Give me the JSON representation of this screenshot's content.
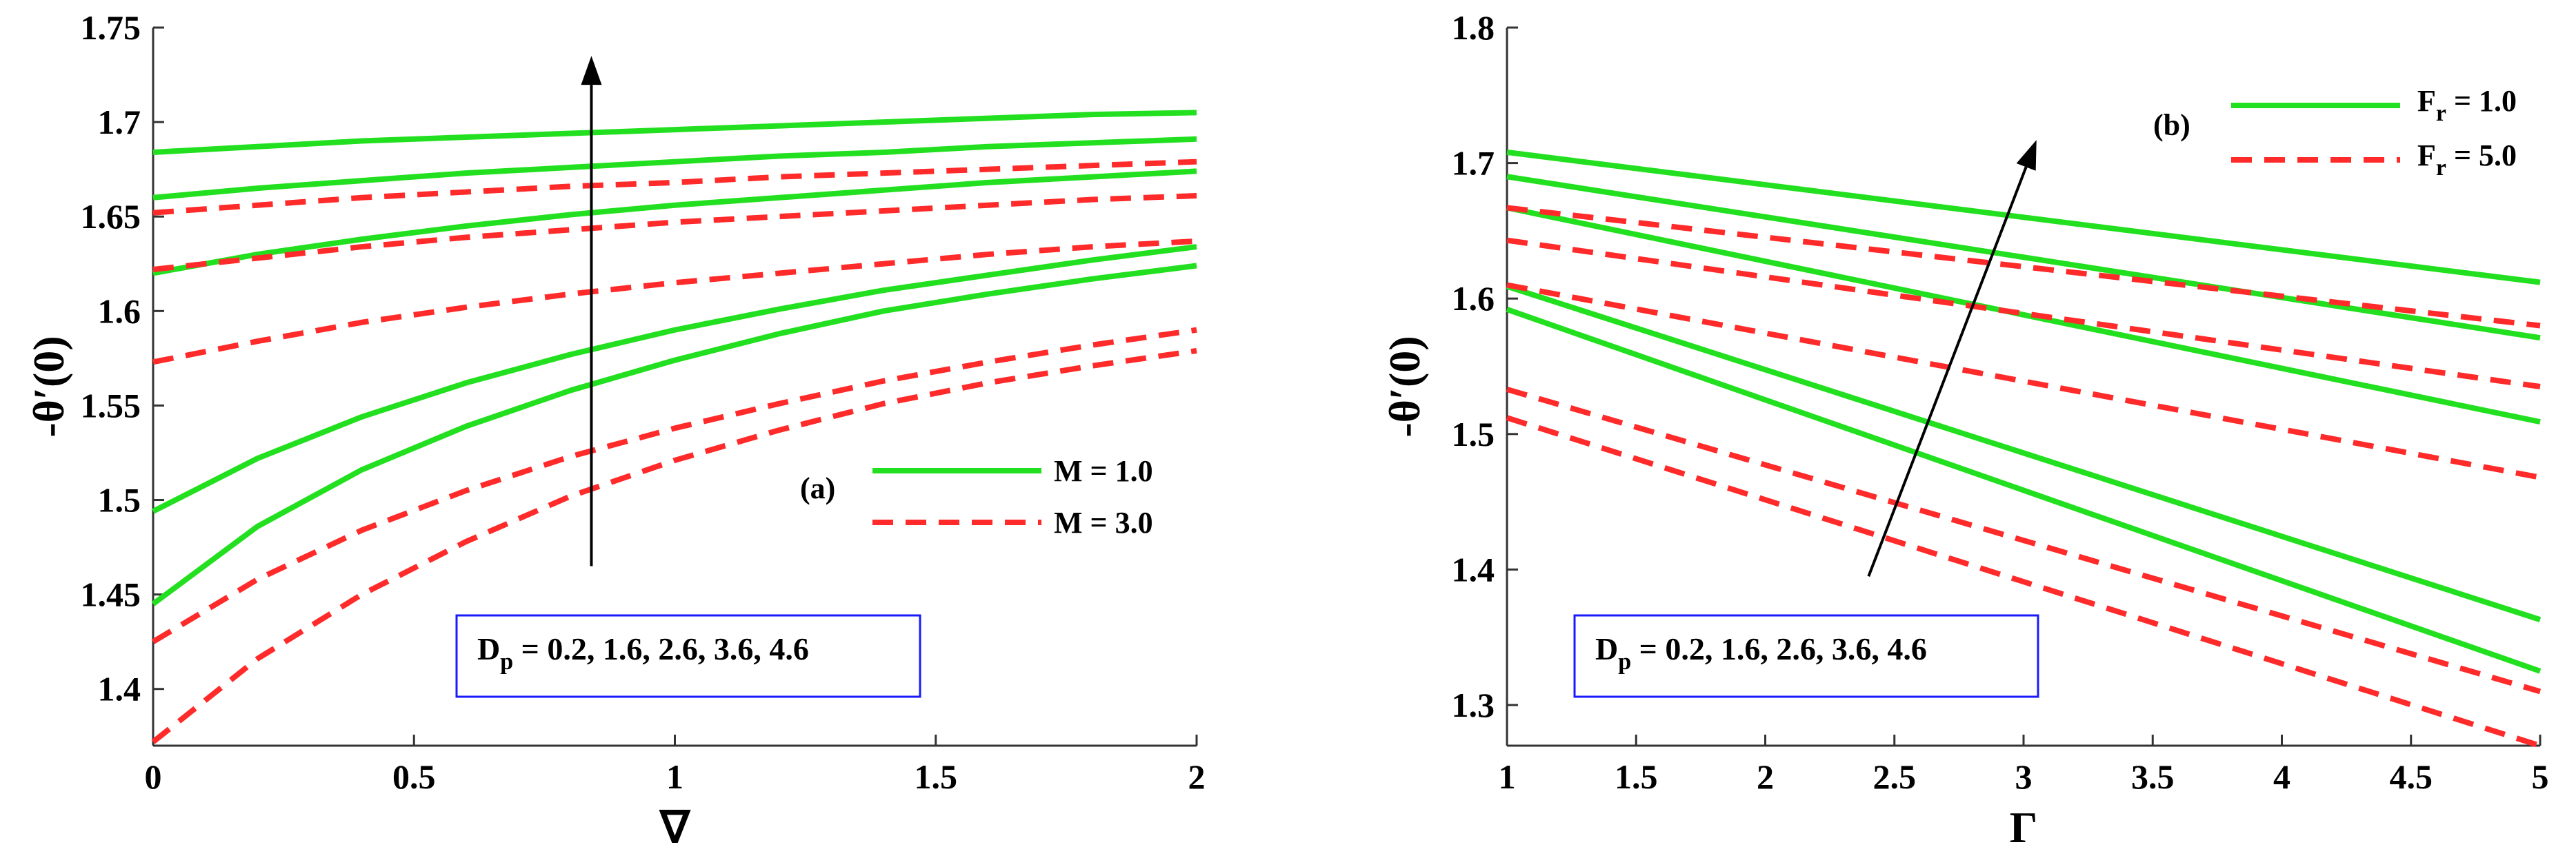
{
  "chart_data": [
    {
      "type": "line",
      "panel_label": "(a)",
      "xlabel": "∇",
      "ylabel": "-θ′(0)",
      "xlim": [
        0,
        2
      ],
      "ylim": [
        1.37,
        1.75
      ],
      "xticks": [
        0,
        0.5,
        1,
        1.5,
        2
      ],
      "xtick_labels": [
        "0",
        "0.5",
        "1",
        "1.5",
        "2"
      ],
      "yticks": [
        1.4,
        1.45,
        1.5,
        1.55,
        1.6,
        1.65,
        1.7,
        1.75
      ],
      "ytick_labels": [
        "1.4",
        "1.45",
        "1.5",
        "1.55",
        "1.6",
        "1.65",
        "1.7",
        "1.75"
      ],
      "legend": [
        {
          "label": "M = 1.0",
          "color": "#22e01f",
          "dash": "solid"
        },
        {
          "label": "M = 3.0",
          "color": "#ff2a2a",
          "dash": "dashed"
        }
      ],
      "annotation": {
        "base": "D",
        "sub": "p",
        "text": " = 0.2, 1.6, 2.6, 3.6, 4.6"
      },
      "arrow": {
        "from": [
          0.84,
          1.465
        ],
        "to": [
          0.84,
          1.735
        ]
      },
      "x": [
        0,
        0.2,
        0.4,
        0.6,
        0.8,
        1.0,
        1.2,
        1.4,
        1.6,
        1.8,
        2.0
      ],
      "series": [
        {
          "name": "M = 1.0, Dp = 0.2",
          "group": 0,
          "values": [
            1.445,
            1.486,
            1.516,
            1.539,
            1.558,
            1.574,
            1.588,
            1.6,
            1.609,
            1.617,
            1.624
          ]
        },
        {
          "name": "M = 1.0, Dp = 1.6",
          "group": 0,
          "values": [
            1.494,
            1.522,
            1.544,
            1.562,
            1.577,
            1.59,
            1.601,
            1.611,
            1.619,
            1.627,
            1.634
          ]
        },
        {
          "name": "M = 1.0, Dp = 2.6",
          "group": 0,
          "values": [
            1.62,
            1.63,
            1.638,
            1.645,
            1.651,
            1.656,
            1.66,
            1.664,
            1.668,
            1.671,
            1.674
          ]
        },
        {
          "name": "M = 1.0, Dp = 3.6",
          "group": 0,
          "values": [
            1.66,
            1.665,
            1.669,
            1.673,
            1.676,
            1.679,
            1.682,
            1.684,
            1.687,
            1.689,
            1.691
          ]
        },
        {
          "name": "M = 1.0, Dp = 4.6",
          "group": 0,
          "values": [
            1.684,
            1.687,
            1.69,
            1.692,
            1.694,
            1.696,
            1.698,
            1.7,
            1.702,
            1.704,
            1.705
          ]
        },
        {
          "name": "M = 3.0, Dp = 0.2",
          "group": 1,
          "values": [
            1.372,
            1.416,
            1.45,
            1.478,
            1.502,
            1.521,
            1.537,
            1.551,
            1.562,
            1.571,
            1.579
          ]
        },
        {
          "name": "M = 3.0, Dp = 1.6",
          "group": 1,
          "values": [
            1.425,
            1.458,
            1.484,
            1.505,
            1.523,
            1.538,
            1.551,
            1.563,
            1.573,
            1.582,
            1.59
          ]
        },
        {
          "name": "M = 3.0, Dp = 2.6",
          "group": 1,
          "values": [
            1.573,
            1.584,
            1.594,
            1.602,
            1.609,
            1.615,
            1.62,
            1.625,
            1.63,
            1.634,
            1.637
          ]
        },
        {
          "name": "M = 3.0, Dp = 3.6",
          "group": 1,
          "values": [
            1.622,
            1.628,
            1.634,
            1.639,
            1.643,
            1.647,
            1.65,
            1.653,
            1.656,
            1.659,
            1.661
          ]
        },
        {
          "name": "M = 3.0, Dp = 4.6",
          "group": 1,
          "values": [
            1.652,
            1.656,
            1.66,
            1.663,
            1.666,
            1.668,
            1.671,
            1.673,
            1.675,
            1.677,
            1.679
          ]
        }
      ]
    },
    {
      "type": "line",
      "panel_label": "(b)",
      "xlabel": "Γ",
      "ylabel": "-θ′(0)",
      "xlim": [
        1,
        5
      ],
      "ylim": [
        1.27,
        1.8
      ],
      "xticks": [
        1,
        1.5,
        2,
        2.5,
        3,
        3.5,
        4,
        4.5,
        5
      ],
      "xtick_labels": [
        "1",
        "1.5",
        "2",
        "2.5",
        "3",
        "3.5",
        "4",
        "4.5",
        "5"
      ],
      "yticks": [
        1.3,
        1.4,
        1.5,
        1.6,
        1.7,
        1.8
      ],
      "ytick_labels": [
        "1.3",
        "1.4",
        "1.5",
        "1.6",
        "1.7",
        "1.8"
      ],
      "legend": [
        {
          "base": "F",
          "sub": "r",
          "rest": " = 1.0",
          "color": "#22e01f",
          "dash": "solid"
        },
        {
          "base": "F",
          "sub": "r",
          "rest": " = 5.0",
          "color": "#ff2a2a",
          "dash": "dashed"
        }
      ],
      "annotation": {
        "base": "D",
        "sub": "p",
        "text": " = 0.2, 1.6, 2.6, 3.6, 4.6"
      },
      "arrow": {
        "from": [
          2.4,
          1.395
        ],
        "to": [
          3.05,
          1.717
        ]
      },
      "x": [
        1,
        5
      ],
      "series": [
        {
          "name": "Fr = 1.0, Dp = 0.2",
          "group": 0,
          "values": [
            1.592,
            1.325
          ]
        },
        {
          "name": "Fr = 1.0, Dp = 1.6",
          "group": 0,
          "values": [
            1.609,
            1.363
          ]
        },
        {
          "name": "Fr = 1.0, Dp = 2.6",
          "group": 0,
          "values": [
            1.667,
            1.509
          ]
        },
        {
          "name": "Fr = 1.0, Dp = 3.6",
          "group": 0,
          "values": [
            1.69,
            1.571
          ]
        },
        {
          "name": "Fr = 1.0, Dp = 4.6",
          "group": 0,
          "values": [
            1.708,
            1.612
          ]
        },
        {
          "name": "Fr = 5.0, Dp = 0.2",
          "group": 1,
          "values": [
            1.512,
            1.27
          ]
        },
        {
          "name": "Fr = 5.0, Dp = 1.6",
          "group": 1,
          "values": [
            1.533,
            1.31
          ]
        },
        {
          "name": "Fr = 5.0, Dp = 2.6",
          "group": 1,
          "values": [
            1.61,
            1.468
          ]
        },
        {
          "name": "Fr = 5.0, Dp = 3.6",
          "group": 1,
          "values": [
            1.643,
            1.535
          ]
        },
        {
          "name": "Fr = 5.0, Dp = 4.6",
          "group": 1,
          "values": [
            1.667,
            1.58
          ]
        }
      ]
    }
  ]
}
